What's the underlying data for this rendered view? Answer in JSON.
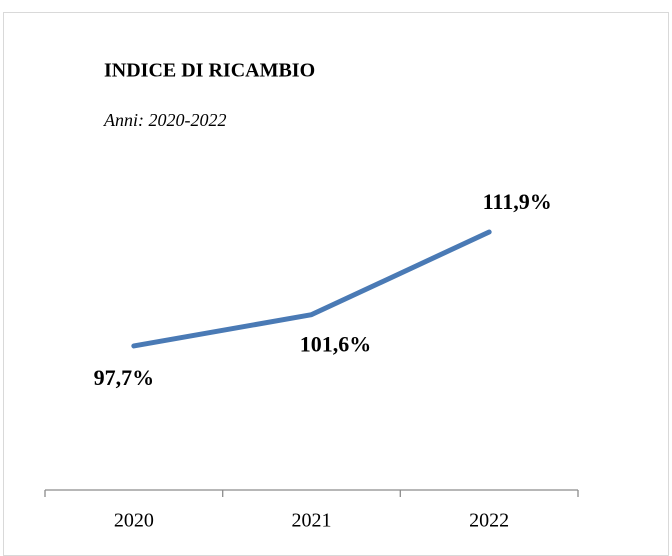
{
  "chart_data": {
    "type": "line",
    "title": "INDICE DI RICAMBIO",
    "subtitle": "Anni: 2020-2022",
    "categories": [
      "2020",
      "2021",
      "2022"
    ],
    "series": [
      {
        "name": "Indice di ricambio",
        "color": "#4a7ab5",
        "values": [
          97.7,
          101.6,
          111.9
        ],
        "value_labels": [
          "97,7%",
          "101,6%",
          "111,9%"
        ]
      }
    ],
    "ylim": [
      80,
      120
    ]
  }
}
